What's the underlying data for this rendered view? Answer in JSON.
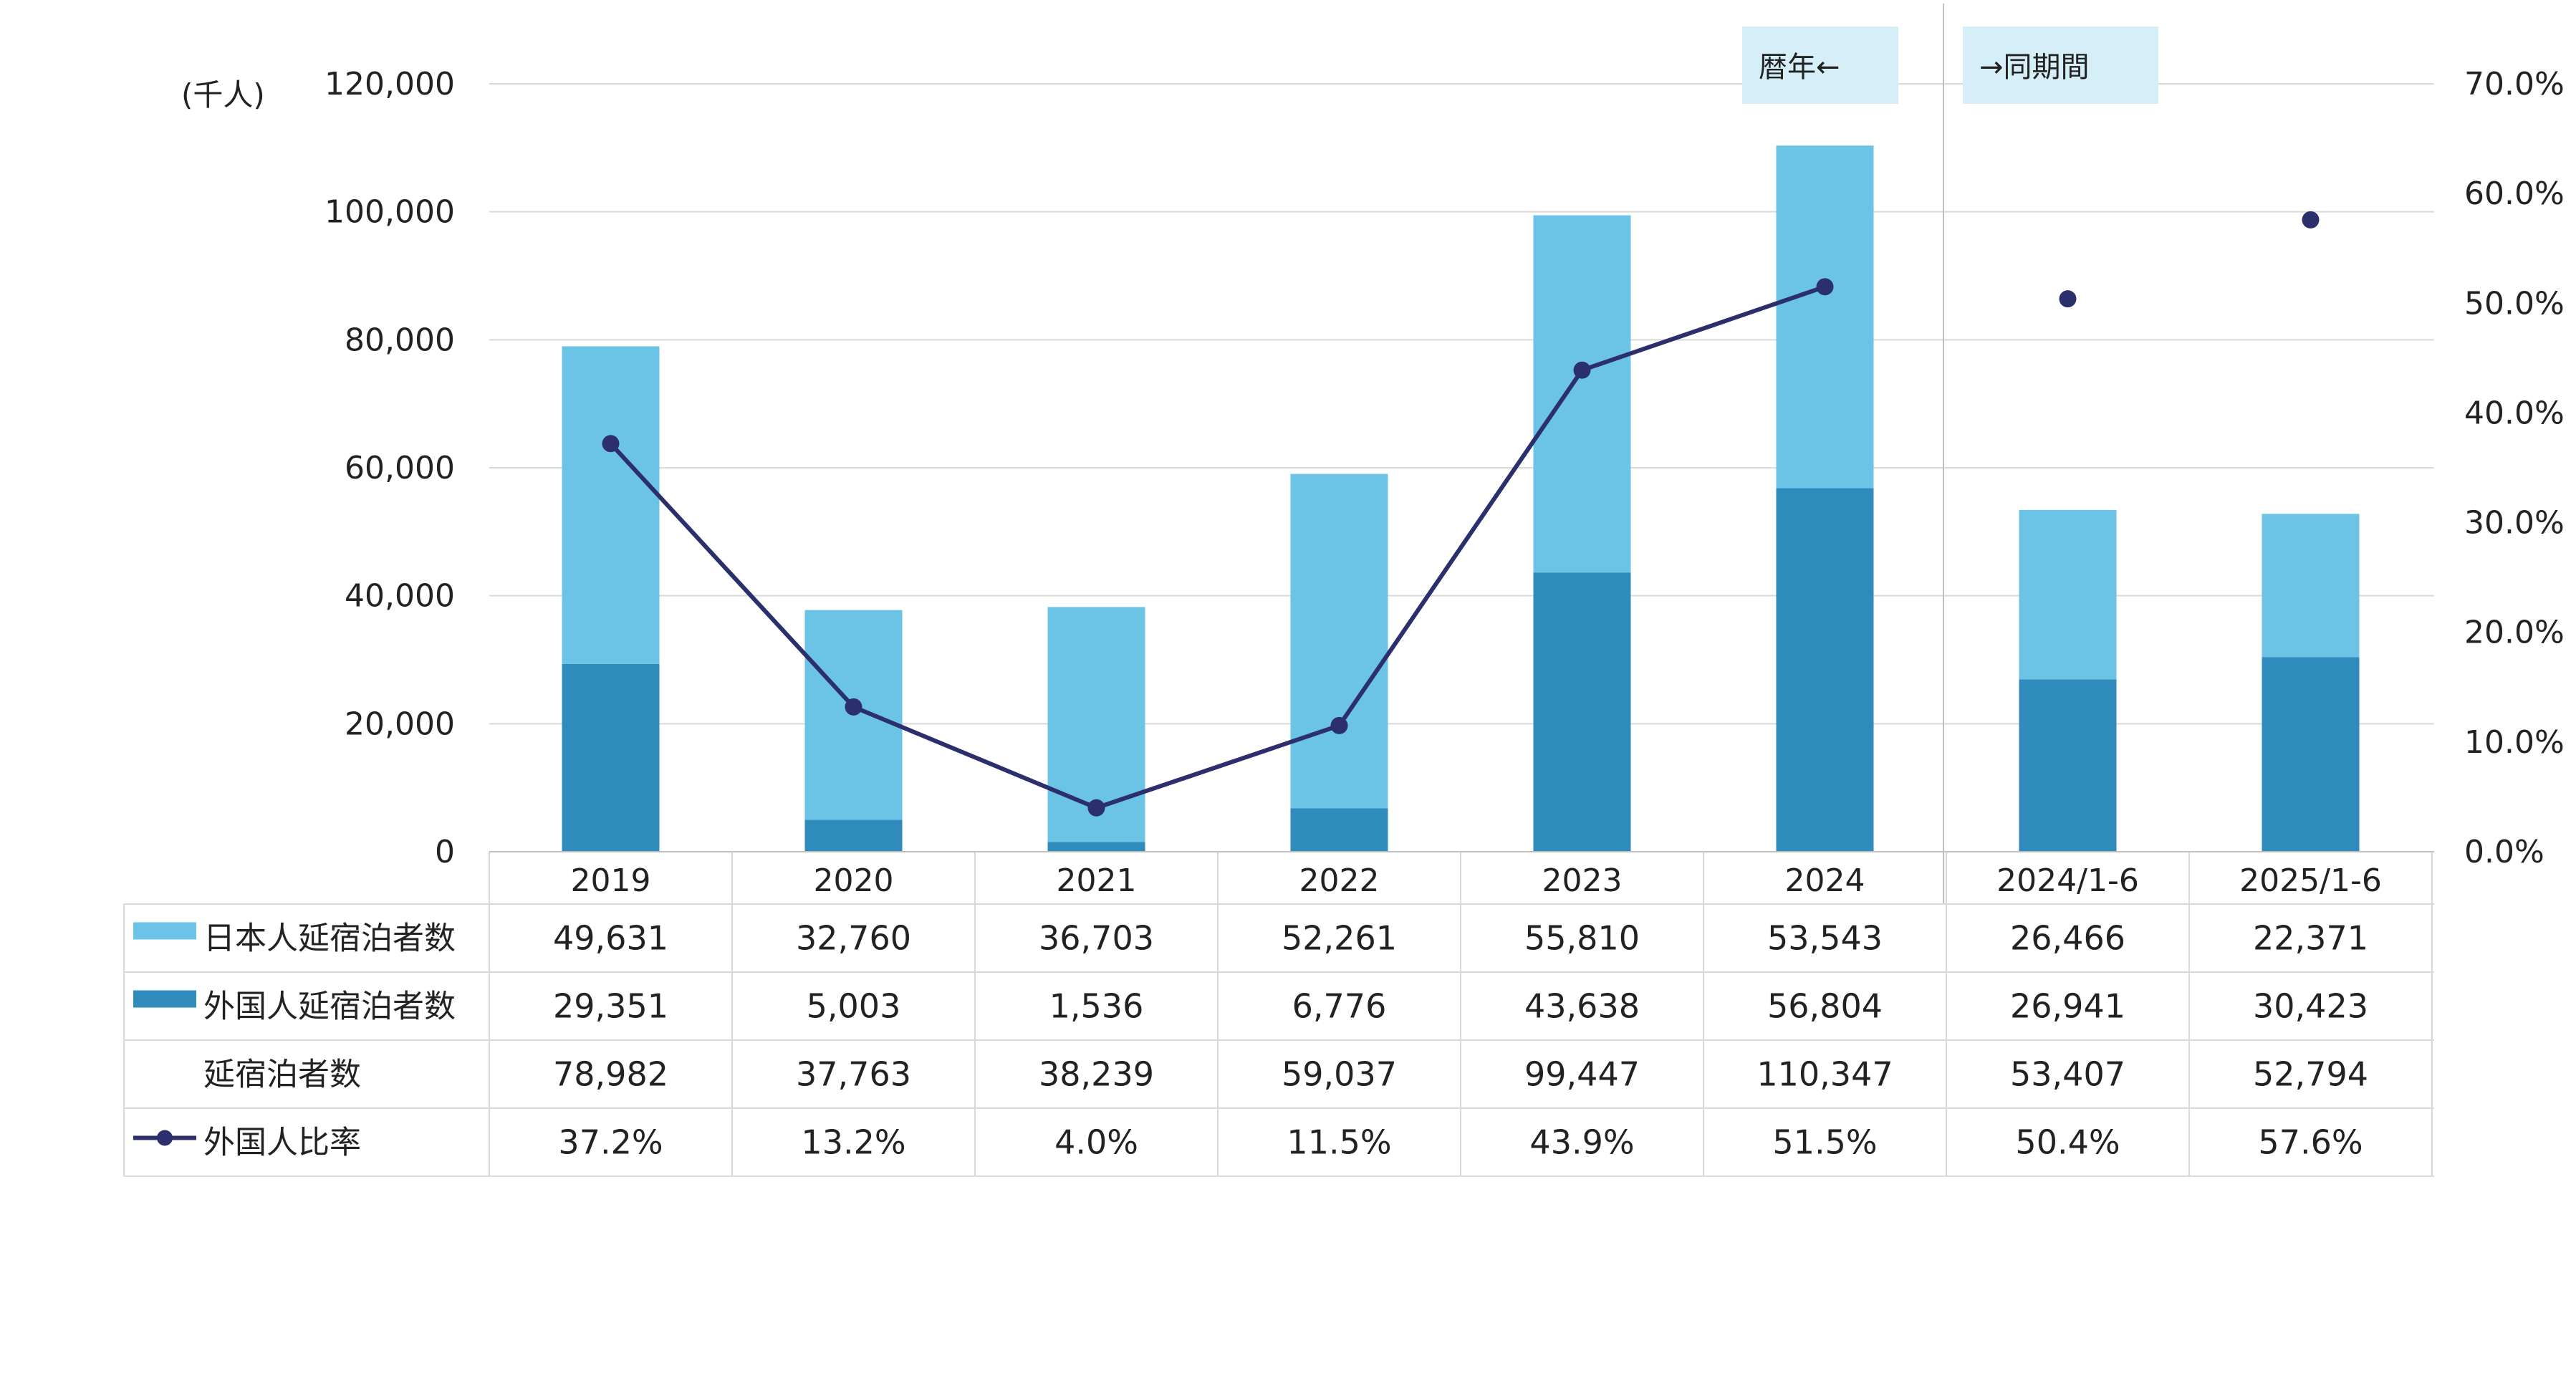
{
  "chart_data": {
    "type": "bar",
    "stacked": true,
    "unit_label": "(千人)",
    "categories": [
      "2019",
      "2020",
      "2021",
      "2022",
      "2023",
      "2024",
      "2024/1-6",
      "2025/1-6"
    ],
    "line_connected_count": 6,
    "annotations": {
      "left_box": "暦年←",
      "right_box": "→同期間"
    },
    "y_left": {
      "min": 0,
      "max": 120000,
      "ticks": [
        "0",
        "20,000",
        "40,000",
        "60,000",
        "80,000",
        "100,000",
        "120,000"
      ]
    },
    "y_right": {
      "min": 0,
      "max": 0.7,
      "ticks": [
        "0.0%",
        "10.0%",
        "20.0%",
        "30.0%",
        "40.0%",
        "50.0%",
        "60.0%",
        "70.0%"
      ]
    },
    "grid": true,
    "legend": "table-below",
    "series": [
      {
        "key": "japanese",
        "name": "日本人延宿泊者数",
        "kind": "bar",
        "color": "#6BC3E6",
        "values": [
          49631,
          32760,
          36703,
          52261,
          55810,
          53543,
          26466,
          22371
        ],
        "labels": [
          "49,631",
          "32,760",
          "36,703",
          "52,261",
          "55,810",
          "53,543",
          "26,466",
          "22,371"
        ]
      },
      {
        "key": "foreign",
        "name": "外国人延宿泊者数",
        "kind": "bar",
        "color": "#2E8BBB",
        "values": [
          29351,
          5003,
          1536,
          6776,
          43638,
          56804,
          26941,
          30423
        ],
        "labels": [
          "29,351",
          "5,003",
          "1,536",
          "6,776",
          "43,638",
          "56,804",
          "26,941",
          "30,423"
        ]
      },
      {
        "key": "total",
        "name": "延宿泊者数",
        "kind": "none",
        "values": [
          78982,
          37763,
          38239,
          59037,
          99447,
          110347,
          53407,
          52794
        ],
        "labels": [
          "78,982",
          "37,763",
          "38,239",
          "59,037",
          "99,447",
          "110,347",
          "53,407",
          "52,794"
        ]
      },
      {
        "key": "ratio",
        "name": "外国人比率",
        "kind": "line",
        "color": "#2B2F6B",
        "values": [
          0.372,
          0.132,
          0.04,
          0.115,
          0.439,
          0.515,
          0.504,
          0.576
        ],
        "labels": [
          "37.2%",
          "13.2%",
          "4.0%",
          "11.5%",
          "43.9%",
          "51.5%",
          "50.4%",
          "57.6%"
        ]
      }
    ]
  }
}
